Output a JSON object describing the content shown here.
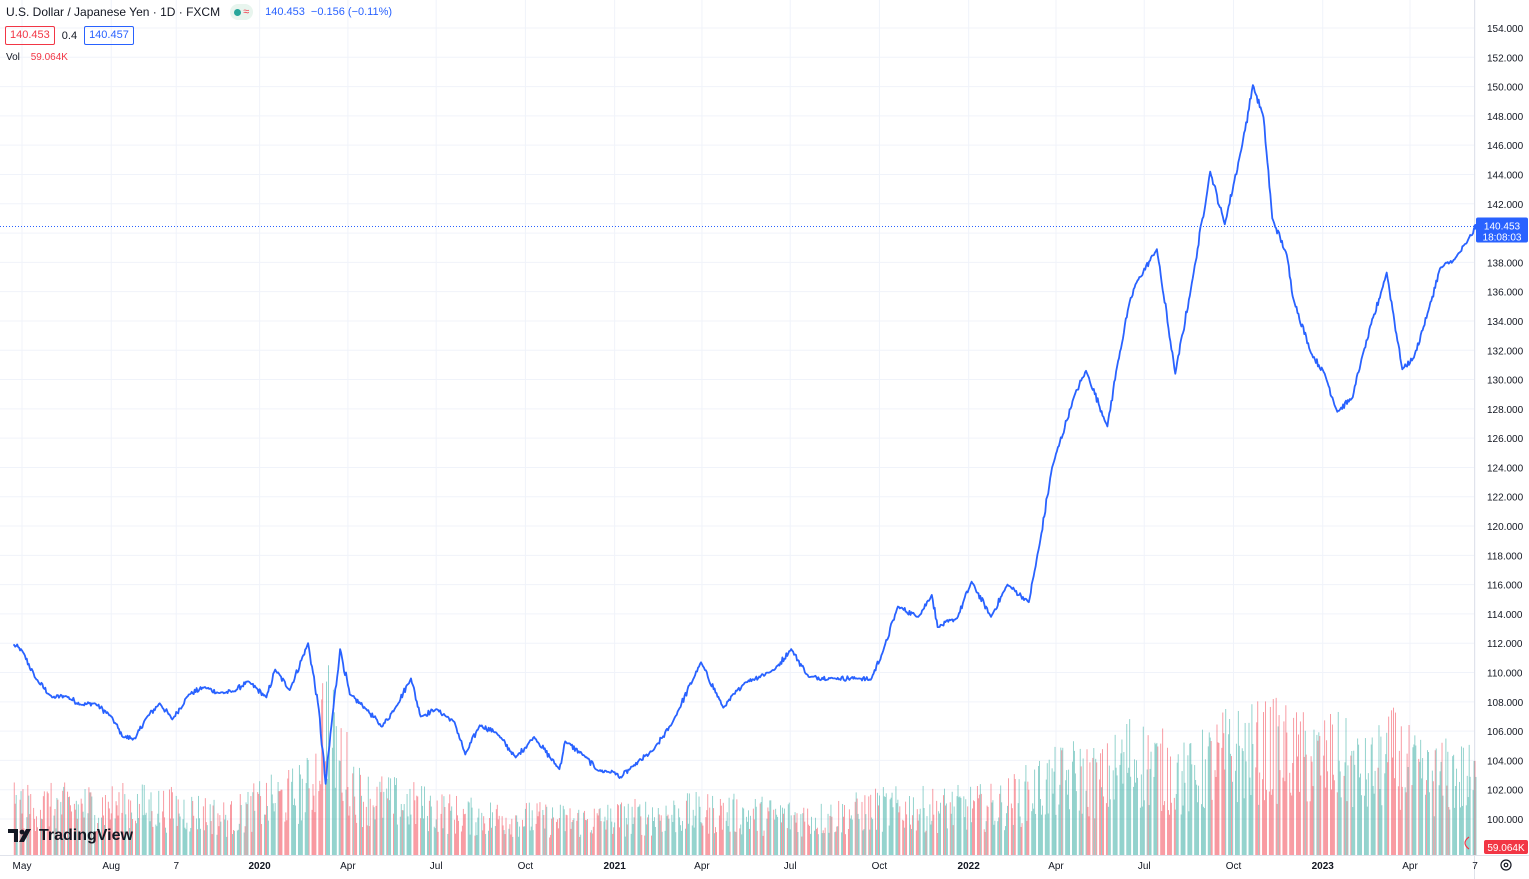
{
  "legend": {
    "title": "U.S. Dollar / Japanese Yen · 1D · FXCM",
    "last": "140.453",
    "change": "−0.156 (−0.11%)",
    "bid": "140.453",
    "spread": "0.4",
    "ask": "140.457",
    "vol_label": "Vol",
    "vol_value": "59.064K"
  },
  "price_badge": {
    "value": "140.453",
    "countdown": "18:08:03"
  },
  "vol_badge": "59.064K",
  "brand": "TradingView",
  "colors": {
    "line": "#2962ff",
    "up": "#26a69a",
    "down": "#f23645",
    "grid": "#f0f3fa",
    "axis_text": "#131722"
  },
  "icons": {
    "logo": "tradingview-logo-icon",
    "settings": "gear-icon",
    "status": "market-status-icon"
  },
  "chart_data": {
    "type": "line",
    "title": "U.S. Dollar / Japanese Yen · 1D · FXCM",
    "xlabel": "",
    "ylabel": "",
    "ylim": [
      98.7,
      155.1
    ],
    "y_ticks": [
      100,
      102,
      104,
      106,
      108,
      110,
      112,
      114,
      116,
      118,
      120,
      122,
      124,
      126,
      128,
      130,
      132,
      134,
      136,
      138,
      140,
      142,
      144,
      146,
      148,
      150,
      152,
      154
    ],
    "x_ticks": [
      {
        "label": "May",
        "date": "2019-05-01",
        "bold": false
      },
      {
        "label": "Aug",
        "date": "2019-08-01",
        "bold": false
      },
      {
        "label": "7",
        "date": "2019-10-07",
        "bold": false
      },
      {
        "label": "2020",
        "date": "2020-01-01",
        "bold": true
      },
      {
        "label": "Apr",
        "date": "2020-04-01",
        "bold": false
      },
      {
        "label": "Jul",
        "date": "2020-07-01",
        "bold": false
      },
      {
        "label": "Oct",
        "date": "2020-10-01",
        "bold": false
      },
      {
        "label": "2021",
        "date": "2021-01-01",
        "bold": true
      },
      {
        "label": "Apr",
        "date": "2021-04-01",
        "bold": false
      },
      {
        "label": "Jul",
        "date": "2021-07-01",
        "bold": false
      },
      {
        "label": "Oct",
        "date": "2021-10-01",
        "bold": false
      },
      {
        "label": "2022",
        "date": "2022-01-01",
        "bold": true
      },
      {
        "label": "Apr",
        "date": "2022-04-01",
        "bold": false
      },
      {
        "label": "Jul",
        "date": "2022-07-01",
        "bold": false
      },
      {
        "label": "Oct",
        "date": "2022-10-01",
        "bold": false
      },
      {
        "label": "2023",
        "date": "2023-01-01",
        "bold": true
      },
      {
        "label": "Apr",
        "date": "2023-04-01",
        "bold": false
      },
      {
        "label": "7",
        "date": "2023-06-07",
        "bold": false
      }
    ],
    "last_price": 140.453,
    "series": [
      {
        "values": [
          [
            "2019-04-22",
            111.9
          ],
          [
            "2019-05-01",
            111.5
          ],
          [
            "2019-05-15",
            109.6
          ],
          [
            "2019-06-01",
            108.3
          ],
          [
            "2019-06-15",
            108.4
          ],
          [
            "2019-07-01",
            107.8
          ],
          [
            "2019-07-15",
            107.9
          ],
          [
            "2019-08-01",
            107.0
          ],
          [
            "2019-08-13",
            105.6
          ],
          [
            "2019-08-26",
            105.5
          ],
          [
            "2019-09-05",
            106.8
          ],
          [
            "2019-09-20",
            107.9
          ],
          [
            "2019-10-03",
            106.8
          ],
          [
            "2019-10-20",
            108.5
          ],
          [
            "2019-11-05",
            109.0
          ],
          [
            "2019-11-20",
            108.6
          ],
          [
            "2019-12-05",
            108.7
          ],
          [
            "2019-12-20",
            109.4
          ],
          [
            "2020-01-08",
            108.3
          ],
          [
            "2020-01-17",
            110.2
          ],
          [
            "2020-02-01",
            108.8
          ],
          [
            "2020-02-20",
            112.0
          ],
          [
            "2020-03-02",
            107.5
          ],
          [
            "2020-03-09",
            102.4
          ],
          [
            "2020-03-16",
            107.0
          ],
          [
            "2020-03-24",
            111.6
          ],
          [
            "2020-04-03",
            108.5
          ],
          [
            "2020-04-20",
            107.5
          ],
          [
            "2020-05-06",
            106.3
          ],
          [
            "2020-05-20",
            107.6
          ],
          [
            "2020-06-05",
            109.6
          ],
          [
            "2020-06-15",
            107.0
          ],
          [
            "2020-07-01",
            107.5
          ],
          [
            "2020-07-20",
            106.6
          ],
          [
            "2020-07-31",
            104.4
          ],
          [
            "2020-08-15",
            106.4
          ],
          [
            "2020-09-01",
            105.9
          ],
          [
            "2020-09-21",
            104.2
          ],
          [
            "2020-10-10",
            105.6
          ],
          [
            "2020-11-05",
            103.4
          ],
          [
            "2020-11-11",
            105.3
          ],
          [
            "2020-12-01",
            104.3
          ],
          [
            "2020-12-15",
            103.3
          ],
          [
            "2021-01-01",
            103.2
          ],
          [
            "2021-01-06",
            102.8
          ],
          [
            "2021-01-20",
            103.6
          ],
          [
            "2021-02-10",
            104.7
          ],
          [
            "2021-03-01",
            106.5
          ],
          [
            "2021-03-31",
            110.7
          ],
          [
            "2021-04-23",
            107.6
          ],
          [
            "2021-05-15",
            109.3
          ],
          [
            "2021-06-15",
            110.2
          ],
          [
            "2021-07-02",
            111.6
          ],
          [
            "2021-07-20",
            109.7
          ],
          [
            "2021-08-15",
            109.6
          ],
          [
            "2021-09-10",
            109.6
          ],
          [
            "2021-09-22",
            109.5
          ],
          [
            "2021-10-05",
            111.5
          ],
          [
            "2021-10-20",
            114.5
          ],
          [
            "2021-11-10",
            113.8
          ],
          [
            "2021-11-24",
            115.3
          ],
          [
            "2021-11-30",
            113.1
          ],
          [
            "2021-12-20",
            113.7
          ],
          [
            "2022-01-04",
            116.2
          ],
          [
            "2022-01-24",
            113.8
          ],
          [
            "2022-02-10",
            116.0
          ],
          [
            "2022-03-04",
            114.8
          ],
          [
            "2022-03-15",
            118.7
          ],
          [
            "2022-03-28",
            124.0
          ],
          [
            "2022-04-20",
            128.9
          ],
          [
            "2022-05-02",
            130.6
          ],
          [
            "2022-05-24",
            126.8
          ],
          [
            "2022-06-03",
            130.9
          ],
          [
            "2022-06-15",
            135.0
          ],
          [
            "2022-06-22",
            136.5
          ],
          [
            "2022-07-14",
            138.9
          ],
          [
            "2022-08-02",
            130.4
          ],
          [
            "2022-08-20",
            136.9
          ],
          [
            "2022-09-07",
            144.2
          ],
          [
            "2022-09-22",
            140.6
          ],
          [
            "2022-10-10",
            146.0
          ],
          [
            "2022-10-21",
            150.1
          ],
          [
            "2022-11-01",
            147.9
          ],
          [
            "2022-11-10",
            141.0
          ],
          [
            "2022-11-25",
            138.5
          ],
          [
            "2022-12-01",
            135.7
          ],
          [
            "2022-12-20",
            131.8
          ],
          [
            "2023-01-03",
            130.4
          ],
          [
            "2023-01-16",
            127.8
          ],
          [
            "2023-02-01",
            128.8
          ],
          [
            "2023-02-10",
            131.4
          ],
          [
            "2023-03-08",
            137.3
          ],
          [
            "2023-03-24",
            130.7
          ],
          [
            "2023-04-05",
            131.5
          ],
          [
            "2023-04-20",
            134.7
          ],
          [
            "2023-05-02",
            137.6
          ],
          [
            "2023-05-17",
            138.2
          ],
          [
            "2023-05-30",
            139.4
          ],
          [
            "2023-06-08",
            140.45
          ]
        ]
      }
    ],
    "volume": {
      "name": "Vol",
      "last": "59.064K",
      "ylim": [
        0,
        130
      ],
      "values": [
        [
          "2019-09-01",
          40
        ],
        [
          "2019-10-01",
          38
        ],
        [
          "2019-11-01",
          35
        ],
        [
          "2019-12-01",
          30
        ],
        [
          "2020-01-01",
          42
        ],
        [
          "2020-02-01",
          48
        ],
        [
          "2020-02-20",
          55
        ],
        [
          "2020-03-01",
          70
        ],
        [
          "2020-03-09",
          130
        ],
        [
          "2020-03-16",
          95
        ],
        [
          "2020-03-24",
          80
        ],
        [
          "2020-04-15",
          48
        ],
        [
          "2020-06-01",
          42
        ],
        [
          "2020-08-01",
          32
        ],
        [
          "2020-10-01",
          30
        ],
        [
          "2020-12-01",
          28
        ],
        [
          "2021-02-01",
          32
        ],
        [
          "2021-04-01",
          35
        ],
        [
          "2021-06-01",
          33
        ],
        [
          "2021-08-01",
          30
        ],
        [
          "2021-10-01",
          38
        ],
        [
          "2021-12-01",
          38
        ],
        [
          "2022-02-01",
          40
        ],
        [
          "2022-03-15",
          55
        ],
        [
          "2022-04-20",
          65
        ],
        [
          "2022-05-20",
          60
        ],
        [
          "2022-06-15",
          80
        ],
        [
          "2022-07-14",
          72
        ],
        [
          "2022-08-15",
          62
        ],
        [
          "2022-09-22",
          82
        ],
        [
          "2022-10-21",
          85
        ],
        [
          "2022-11-10",
          88
        ],
        [
          "2022-12-20",
          78
        ],
        [
          "2023-01-16",
          80
        ],
        [
          "2023-02-15",
          65
        ],
        [
          "2023-03-15",
          82
        ],
        [
          "2023-04-15",
          62
        ],
        [
          "2023-05-15",
          66
        ],
        [
          "2023-06-08",
          60
        ]
      ]
    }
  }
}
